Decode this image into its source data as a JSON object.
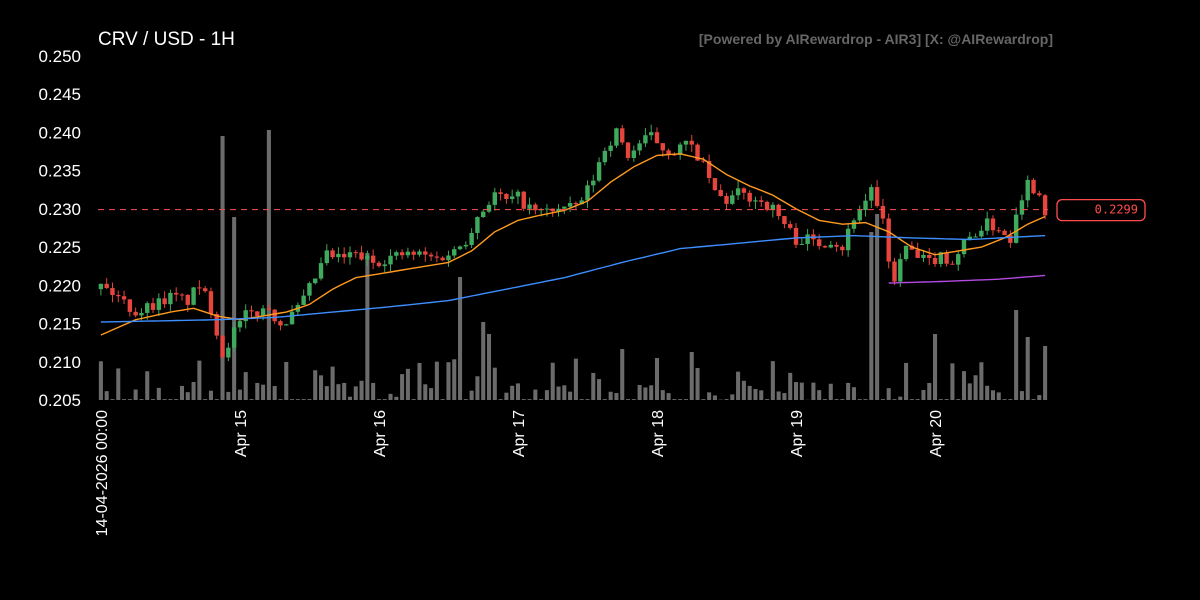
{
  "header": {
    "title": "CRV / USD - 1H",
    "credit": "[Powered by AIRewardrop - AIR3] [X: @AIRewardrop]"
  },
  "chart_data": {
    "type": "candlestick",
    "title": "CRV / USD - 1H",
    "ylim": [
      0.205,
      0.25
    ],
    "yticks": [
      "0.205",
      "0.210",
      "0.215",
      "0.220",
      "0.225",
      "0.230",
      "0.235",
      "0.240",
      "0.245",
      "0.250"
    ],
    "xlim": [
      0,
      164
    ],
    "xticks": [
      {
        "pos": 0,
        "label": "14-04-2026 00:00"
      },
      {
        "pos": 24,
        "label": "Apr 15"
      },
      {
        "pos": 48,
        "label": "Apr 16"
      },
      {
        "pos": 72,
        "label": "Apr 17"
      },
      {
        "pos": 96,
        "label": "Apr 18"
      },
      {
        "pos": 120,
        "label": "Apr 19"
      },
      {
        "pos": 144,
        "label": "Apr 20"
      }
    ],
    "last_price": 0.2299,
    "last_price_label": "0.2299",
    "colors": {
      "up": "#3fa95d",
      "down": "#e5453c",
      "volume": "#6b6b6b",
      "ma_fast": "#ff9a1f",
      "ma_mid": "#3d8eff",
      "ma_slow": "#b44be0",
      "price_line": "#ff4d4d"
    },
    "candle_close_anchors": [
      [
        0,
        0.22
      ],
      [
        3,
        0.2185
      ],
      [
        6,
        0.2165
      ],
      [
        9,
        0.2175
      ],
      [
        12,
        0.2185
      ],
      [
        15,
        0.218
      ],
      [
        17,
        0.22
      ],
      [
        19,
        0.217
      ],
      [
        21,
        0.211
      ],
      [
        23,
        0.214
      ],
      [
        25,
        0.216
      ],
      [
        27,
        0.2165
      ],
      [
        29,
        0.217
      ],
      [
        31,
        0.215
      ],
      [
        33,
        0.216
      ],
      [
        35,
        0.218
      ],
      [
        37,
        0.221
      ],
      [
        39,
        0.224
      ],
      [
        41,
        0.2235
      ],
      [
        44,
        0.224
      ],
      [
        47,
        0.223
      ],
      [
        49,
        0.2235
      ],
      [
        52,
        0.224
      ],
      [
        55,
        0.224
      ],
      [
        58,
        0.2235
      ],
      [
        61,
        0.2245
      ],
      [
        63,
        0.226
      ],
      [
        65,
        0.229
      ],
      [
        66,
        0.23
      ],
      [
        68,
        0.232
      ],
      [
        70,
        0.231
      ],
      [
        72,
        0.2315
      ],
      [
        74,
        0.23
      ],
      [
        76,
        0.2295
      ],
      [
        78,
        0.23
      ],
      [
        81,
        0.23
      ],
      [
        83,
        0.231
      ],
      [
        85,
        0.234
      ],
      [
        87,
        0.238
      ],
      [
        89,
        0.24
      ],
      [
        91,
        0.237
      ],
      [
        93,
        0.2385
      ],
      [
        95,
        0.2395
      ],
      [
        97,
        0.238
      ],
      [
        99,
        0.2375
      ],
      [
        101,
        0.2385
      ],
      [
        103,
        0.237
      ],
      [
        105,
        0.234
      ],
      [
        106,
        0.232
      ],
      [
        108,
        0.231
      ],
      [
        110,
        0.232
      ],
      [
        112,
        0.2315
      ],
      [
        114,
        0.231
      ],
      [
        116,
        0.23
      ],
      [
        118,
        0.228
      ],
      [
        120,
        0.226
      ],
      [
        122,
        0.226
      ],
      [
        124,
        0.2255
      ],
      [
        126,
        0.226
      ],
      [
        128,
        0.225
      ],
      [
        130,
        0.229
      ],
      [
        132,
        0.231
      ],
      [
        133,
        0.233
      ],
      [
        134,
        0.23
      ],
      [
        135,
        0.228
      ],
      [
        136,
        0.223
      ],
      [
        137,
        0.221
      ],
      [
        139,
        0.225
      ],
      [
        141,
        0.2235
      ],
      [
        143,
        0.223
      ],
      [
        145,
        0.224
      ],
      [
        147,
        0.223
      ],
      [
        149,
        0.2255
      ],
      [
        151,
        0.227
      ],
      [
        153,
        0.228
      ],
      [
        155,
        0.2275
      ],
      [
        157,
        0.226
      ],
      [
        158,
        0.23
      ],
      [
        160,
        0.2335
      ],
      [
        162,
        0.232
      ],
      [
        163,
        0.2299
      ]
    ],
    "ma_fast_anchors": [
      [
        0,
        0.2135
      ],
      [
        6,
        0.2155
      ],
      [
        12,
        0.2165
      ],
      [
        16,
        0.217
      ],
      [
        20,
        0.216
      ],
      [
        24,
        0.2155
      ],
      [
        28,
        0.216
      ],
      [
        32,
        0.2165
      ],
      [
        36,
        0.2175
      ],
      [
        40,
        0.2195
      ],
      [
        44,
        0.221
      ],
      [
        48,
        0.2215
      ],
      [
        52,
        0.222
      ],
      [
        56,
        0.2225
      ],
      [
        60,
        0.223
      ],
      [
        64,
        0.2245
      ],
      [
        68,
        0.227
      ],
      [
        72,
        0.2285
      ],
      [
        76,
        0.2292
      ],
      [
        80,
        0.2298
      ],
      [
        84,
        0.231
      ],
      [
        88,
        0.2335
      ],
      [
        92,
        0.2355
      ],
      [
        96,
        0.237
      ],
      [
        100,
        0.2372
      ],
      [
        104,
        0.2365
      ],
      [
        108,
        0.2345
      ],
      [
        112,
        0.233
      ],
      [
        116,
        0.2318
      ],
      [
        120,
        0.23
      ],
      [
        124,
        0.2285
      ],
      [
        128,
        0.228
      ],
      [
        132,
        0.2282
      ],
      [
        136,
        0.227
      ],
      [
        140,
        0.225
      ],
      [
        144,
        0.224
      ],
      [
        148,
        0.2245
      ],
      [
        152,
        0.225
      ],
      [
        156,
        0.2262
      ],
      [
        160,
        0.228
      ],
      [
        163,
        0.229
      ]
    ],
    "ma_mid_anchors": [
      [
        0,
        0.2152
      ],
      [
        20,
        0.2155
      ],
      [
        30,
        0.2158
      ],
      [
        40,
        0.2165
      ],
      [
        50,
        0.2172
      ],
      [
        60,
        0.218
      ],
      [
        70,
        0.2195
      ],
      [
        80,
        0.221
      ],
      [
        90,
        0.223
      ],
      [
        100,
        0.2248
      ],
      [
        110,
        0.2255
      ],
      [
        120,
        0.2262
      ],
      [
        130,
        0.2265
      ],
      [
        140,
        0.2262
      ],
      [
        150,
        0.226
      ],
      [
        163,
        0.2265
      ]
    ],
    "ma_slow_anchors": [
      [
        136,
        0.2203
      ],
      [
        145,
        0.2205
      ],
      [
        155,
        0.2208
      ],
      [
        163,
        0.2213
      ]
    ],
    "volume_ylim": [
      0,
      1
    ],
    "volume_spikes": [
      [
        21,
        0.88
      ],
      [
        23,
        0.61
      ],
      [
        29,
        0.9
      ],
      [
        46,
        0.49
      ],
      [
        62,
        0.41
      ],
      [
        66,
        0.26
      ],
      [
        67,
        0.22
      ],
      [
        90,
        0.17
      ],
      [
        96,
        0.14
      ],
      [
        102,
        0.16
      ],
      [
        133,
        0.56
      ],
      [
        134,
        0.62
      ],
      [
        144,
        0.22
      ],
      [
        158,
        0.3
      ],
      [
        160,
        0.21
      ],
      [
        163,
        0.18
      ]
    ]
  }
}
